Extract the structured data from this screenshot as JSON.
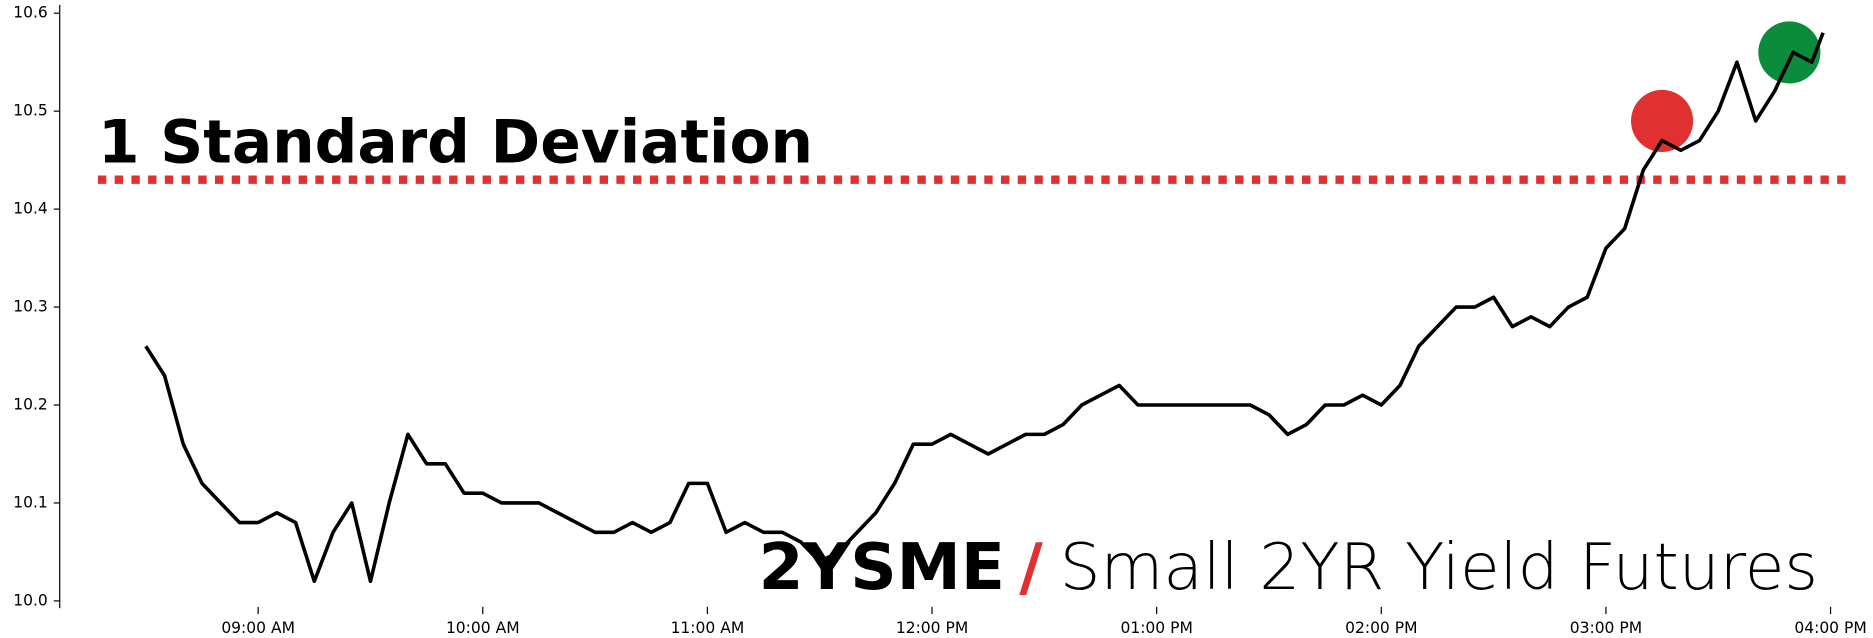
{
  "chart_data": {
    "type": "line",
    "annotation": "1 Standard Deviation",
    "threshold": 10.43,
    "threshold_color": "#e03030",
    "brand": "2YSME",
    "brand_separator": "/",
    "brand_name": "Small 2YR Yield Futures",
    "x": [
      "08:30",
      "08:35",
      "08:40",
      "08:45",
      "08:50",
      "08:55",
      "09:00",
      "09:05",
      "09:10",
      "09:15",
      "09:20",
      "09:25",
      "09:30",
      "09:35",
      "09:40",
      "09:45",
      "09:50",
      "09:55",
      "10:00",
      "10:05",
      "10:10",
      "10:15",
      "10:20",
      "10:25",
      "10:30",
      "10:35",
      "10:40",
      "10:45",
      "10:50",
      "10:55",
      "11:00",
      "11:05",
      "11:10",
      "11:15",
      "11:20",
      "11:25",
      "11:30",
      "11:35",
      "11:40",
      "11:45",
      "11:50",
      "11:55",
      "12:00",
      "12:05",
      "12:10",
      "12:15",
      "12:20",
      "12:25",
      "12:30",
      "12:35",
      "12:40",
      "12:45",
      "12:50",
      "12:55",
      "13:00",
      "13:05",
      "13:10",
      "13:15",
      "13:20",
      "13:25",
      "13:30",
      "13:35",
      "13:40",
      "13:45",
      "13:50",
      "13:55",
      "14:00",
      "14:05",
      "14:10",
      "14:15",
      "14:20",
      "14:25",
      "14:30",
      "14:35",
      "14:40",
      "14:45",
      "14:50",
      "14:55",
      "15:00",
      "15:05",
      "15:10",
      "15:15",
      "15:20",
      "15:25",
      "15:30",
      "15:35",
      "15:40",
      "15:45",
      "15:50",
      "15:55",
      "15:58"
    ],
    "series": [
      {
        "name": "2YSME",
        "color": "#000000",
        "values": [
          10.26,
          10.23,
          10.16,
          10.12,
          10.1,
          10.08,
          10.08,
          10.09,
          10.08,
          10.02,
          10.07,
          10.1,
          10.02,
          10.1,
          10.17,
          10.14,
          10.14,
          10.11,
          10.11,
          10.1,
          10.1,
          10.1,
          10.09,
          10.08,
          10.07,
          10.07,
          10.08,
          10.07,
          10.08,
          10.12,
          10.12,
          10.07,
          10.08,
          10.07,
          10.07,
          10.06,
          10.04,
          10.05,
          10.07,
          10.09,
          10.12,
          10.16,
          10.16,
          10.17,
          10.16,
          10.15,
          10.16,
          10.17,
          10.17,
          10.18,
          10.2,
          10.21,
          10.22,
          10.2,
          10.2,
          10.2,
          10.2,
          10.2,
          10.2,
          10.2,
          10.19,
          10.17,
          10.18,
          10.2,
          10.2,
          10.21,
          10.2,
          10.22,
          10.26,
          10.28,
          10.3,
          10.3,
          10.31,
          10.28,
          10.29,
          10.28,
          10.3,
          10.31,
          10.36,
          10.38,
          10.44,
          10.47,
          10.46,
          10.47,
          10.5,
          10.55,
          10.49,
          10.52,
          10.56,
          10.55,
          10.58
        ]
      }
    ],
    "markers": [
      {
        "x": "15:15",
        "y": 10.49,
        "color": "#e03030"
      },
      {
        "x": "15:49",
        "y": 10.56,
        "color": "#0a8c3c"
      }
    ],
    "xlim": [
      "08:07",
      "16:04"
    ],
    "xticks": [
      {
        "value": "09:00",
        "label": "09:00 AM"
      },
      {
        "value": "10:00",
        "label": "10:00 AM"
      },
      {
        "value": "11:00",
        "label": "11:00 AM"
      },
      {
        "value": "12:00",
        "label": "12:00 PM"
      },
      {
        "value": "13:00",
        "label": "01:00 PM"
      },
      {
        "value": "14:00",
        "label": "02:00 PM"
      },
      {
        "value": "15:00",
        "label": "03:00 PM"
      },
      {
        "value": "16:00",
        "label": "04:00 PM"
      }
    ],
    "ylim": [
      10.0,
      10.6
    ],
    "yticks": [
      {
        "value": 10.0,
        "label": "10.0"
      },
      10.1,
      10.2,
      10.3,
      10.4,
      10.5,
      10.6
    ]
  }
}
